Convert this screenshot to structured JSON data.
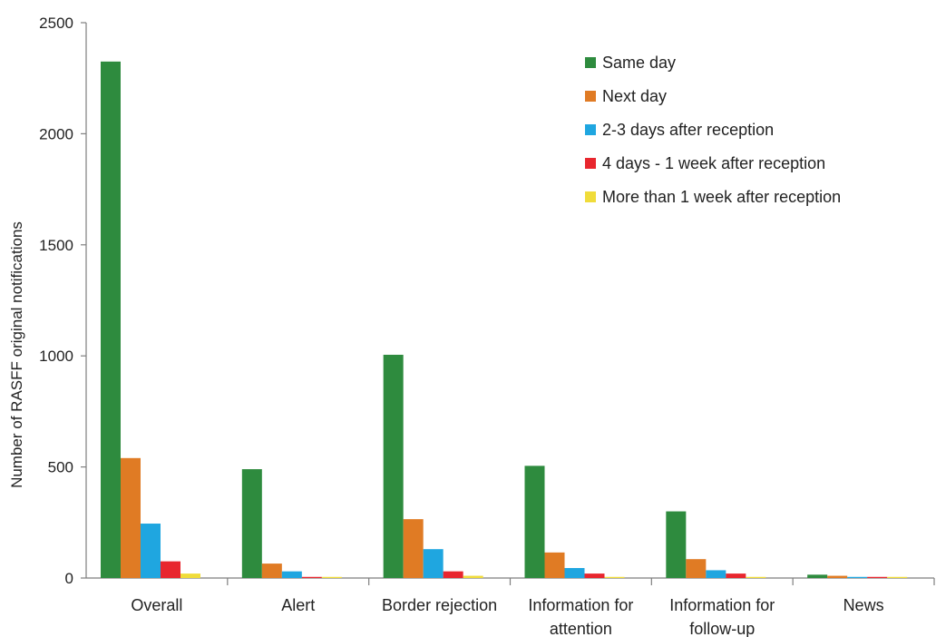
{
  "chart_data": {
    "type": "bar",
    "title": "",
    "xlabel": "",
    "ylabel": "Number of RASFF original notifications",
    "ylim": [
      0,
      2500
    ],
    "yticks": [
      0,
      500,
      1000,
      1500,
      2000,
      2500
    ],
    "grid": false,
    "legend_position": "top-right",
    "categories": [
      [
        "Overall"
      ],
      [
        "Alert"
      ],
      [
        "Border rejection"
      ],
      [
        "Information for",
        "attention"
      ],
      [
        "Information for",
        "follow-up"
      ],
      [
        "News"
      ]
    ],
    "series": [
      {
        "name": "Same day",
        "color": "#2e8b3e",
        "values": [
          2325,
          490,
          1005,
          505,
          300,
          15
        ]
      },
      {
        "name": "Next day",
        "color": "#e07b24",
        "values": [
          540,
          65,
          265,
          115,
          85,
          10
        ]
      },
      {
        "name": "2-3 days after reception",
        "color": "#1fa6e0",
        "values": [
          245,
          30,
          130,
          45,
          35,
          5
        ]
      },
      {
        "name": "4 days - 1 week after reception",
        "color": "#e8262e",
        "values": [
          75,
          5,
          30,
          20,
          20,
          5
        ]
      },
      {
        "name": "More than 1 week after reception",
        "color": "#f0dc3a",
        "values": [
          20,
          5,
          10,
          5,
          5,
          5
        ]
      }
    ]
  }
}
